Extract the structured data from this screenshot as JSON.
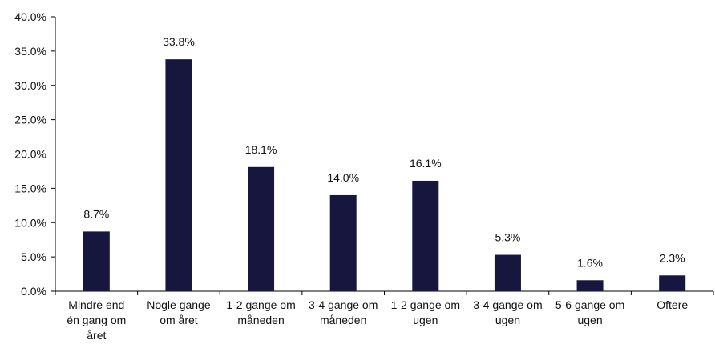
{
  "chart_data": {
    "type": "bar",
    "categories": [
      [
        "Mindre end",
        "én gang om",
        "året"
      ],
      [
        "Nogle gange",
        "om året"
      ],
      [
        "1-2 gange om",
        "måneden"
      ],
      [
        "3-4 gange om",
        "måneden"
      ],
      [
        "1-2 gange om",
        "ugen"
      ],
      [
        "3-4 gange om",
        "ugen"
      ],
      [
        "5-6 gange om",
        "ugen"
      ],
      [
        "Oftere"
      ]
    ],
    "values": [
      8.7,
      33.8,
      18.1,
      14.0,
      16.1,
      5.3,
      1.6,
      2.3
    ],
    "data_labels": [
      "8.7%",
      "33.8%",
      "18.1%",
      "14.0%",
      "16.1%",
      "5.3%",
      "1.6%",
      "2.3%"
    ],
    "ylim": [
      0,
      40
    ],
    "yticks": [
      0,
      5,
      10,
      15,
      20,
      25,
      30,
      35,
      40
    ],
    "ytick_labels": [
      "0.0%",
      "5.0%",
      "10.0%",
      "15.0%",
      "20.0%",
      "25.0%",
      "30.0%",
      "35.0%",
      "40.0%"
    ],
    "bar_color": "#16163f",
    "axis_color": "#000000",
    "grid": false
  }
}
